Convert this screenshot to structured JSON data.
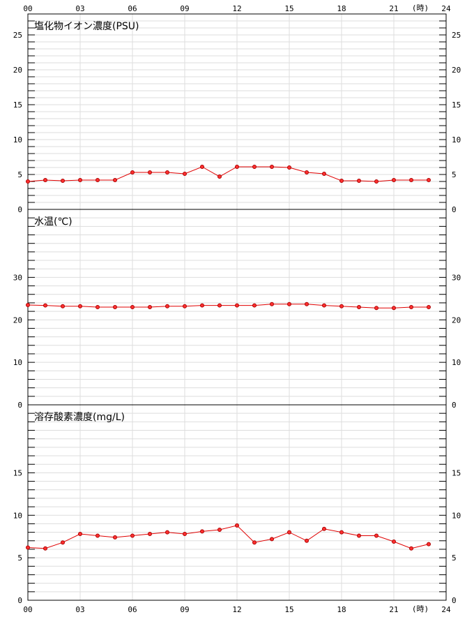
{
  "hour_ticks": [
    "00",
    "03",
    "06",
    "09",
    "12",
    "15",
    "18",
    "21",
    "24"
  ],
  "hour_unit": "(時)",
  "colors": {
    "series": "#e00000",
    "marker_fill": "#ff3030",
    "grid": "#dddddd",
    "axis": "#000000"
  },
  "chart_data": [
    {
      "type": "line",
      "title": "塩化物イオン濃度(PSU)",
      "x": [
        0,
        1,
        2,
        3,
        4,
        5,
        6,
        7,
        8,
        9,
        10,
        11,
        12,
        13,
        14,
        15,
        16,
        17,
        18,
        19,
        20,
        21,
        22,
        23
      ],
      "values": [
        4.0,
        4.2,
        4.1,
        4.2,
        4.2,
        4.2,
        5.3,
        5.3,
        5.3,
        5.1,
        6.1,
        4.7,
        6.1,
        6.1,
        6.1,
        6.0,
        5.3,
        5.1,
        4.1,
        4.1,
        4.0,
        4.2,
        4.2,
        4.2
      ],
      "xlim": [
        0,
        24
      ],
      "ylim": [
        0,
        28
      ],
      "yticks": [
        0,
        5,
        10,
        15,
        20,
        25
      ],
      "minor_step": 1,
      "grid": true
    },
    {
      "type": "line",
      "title": "水温(℃)",
      "x": [
        0,
        1,
        2,
        3,
        4,
        5,
        6,
        7,
        8,
        9,
        10,
        11,
        12,
        13,
        14,
        15,
        16,
        17,
        18,
        19,
        20,
        21,
        22,
        23
      ],
      "values": [
        23.5,
        23.4,
        23.2,
        23.2,
        23.0,
        23.0,
        23.0,
        23.0,
        23.2,
        23.2,
        23.4,
        23.4,
        23.4,
        23.4,
        23.7,
        23.7,
        23.7,
        23.4,
        23.2,
        23.0,
        22.8,
        22.8,
        23.0,
        23.0
      ],
      "xlim": [
        0,
        24
      ],
      "ylim": [
        0,
        46
      ],
      "yticks": [
        0,
        10,
        20,
        30
      ],
      "minor_step": 2,
      "grid": true
    },
    {
      "type": "line",
      "title": "溶存酸素濃度(mg/L)",
      "x": [
        0,
        1,
        2,
        3,
        4,
        5,
        6,
        7,
        8,
        9,
        10,
        11,
        12,
        13,
        14,
        15,
        16,
        17,
        18,
        19,
        20,
        21,
        22,
        23
      ],
      "values": [
        6.2,
        6.1,
        6.8,
        7.8,
        7.6,
        7.4,
        7.6,
        7.8,
        8.0,
        7.8,
        8.1,
        8.3,
        8.8,
        6.8,
        7.2,
        8.0,
        7.0,
        8.4,
        8.0,
        7.6,
        7.6,
        6.9,
        6.1,
        6.6
      ],
      "xlim": [
        0,
        24
      ],
      "ylim": [
        0,
        23
      ],
      "yticks": [
        0,
        5,
        10,
        15
      ],
      "minor_step": 1,
      "grid": true
    }
  ]
}
